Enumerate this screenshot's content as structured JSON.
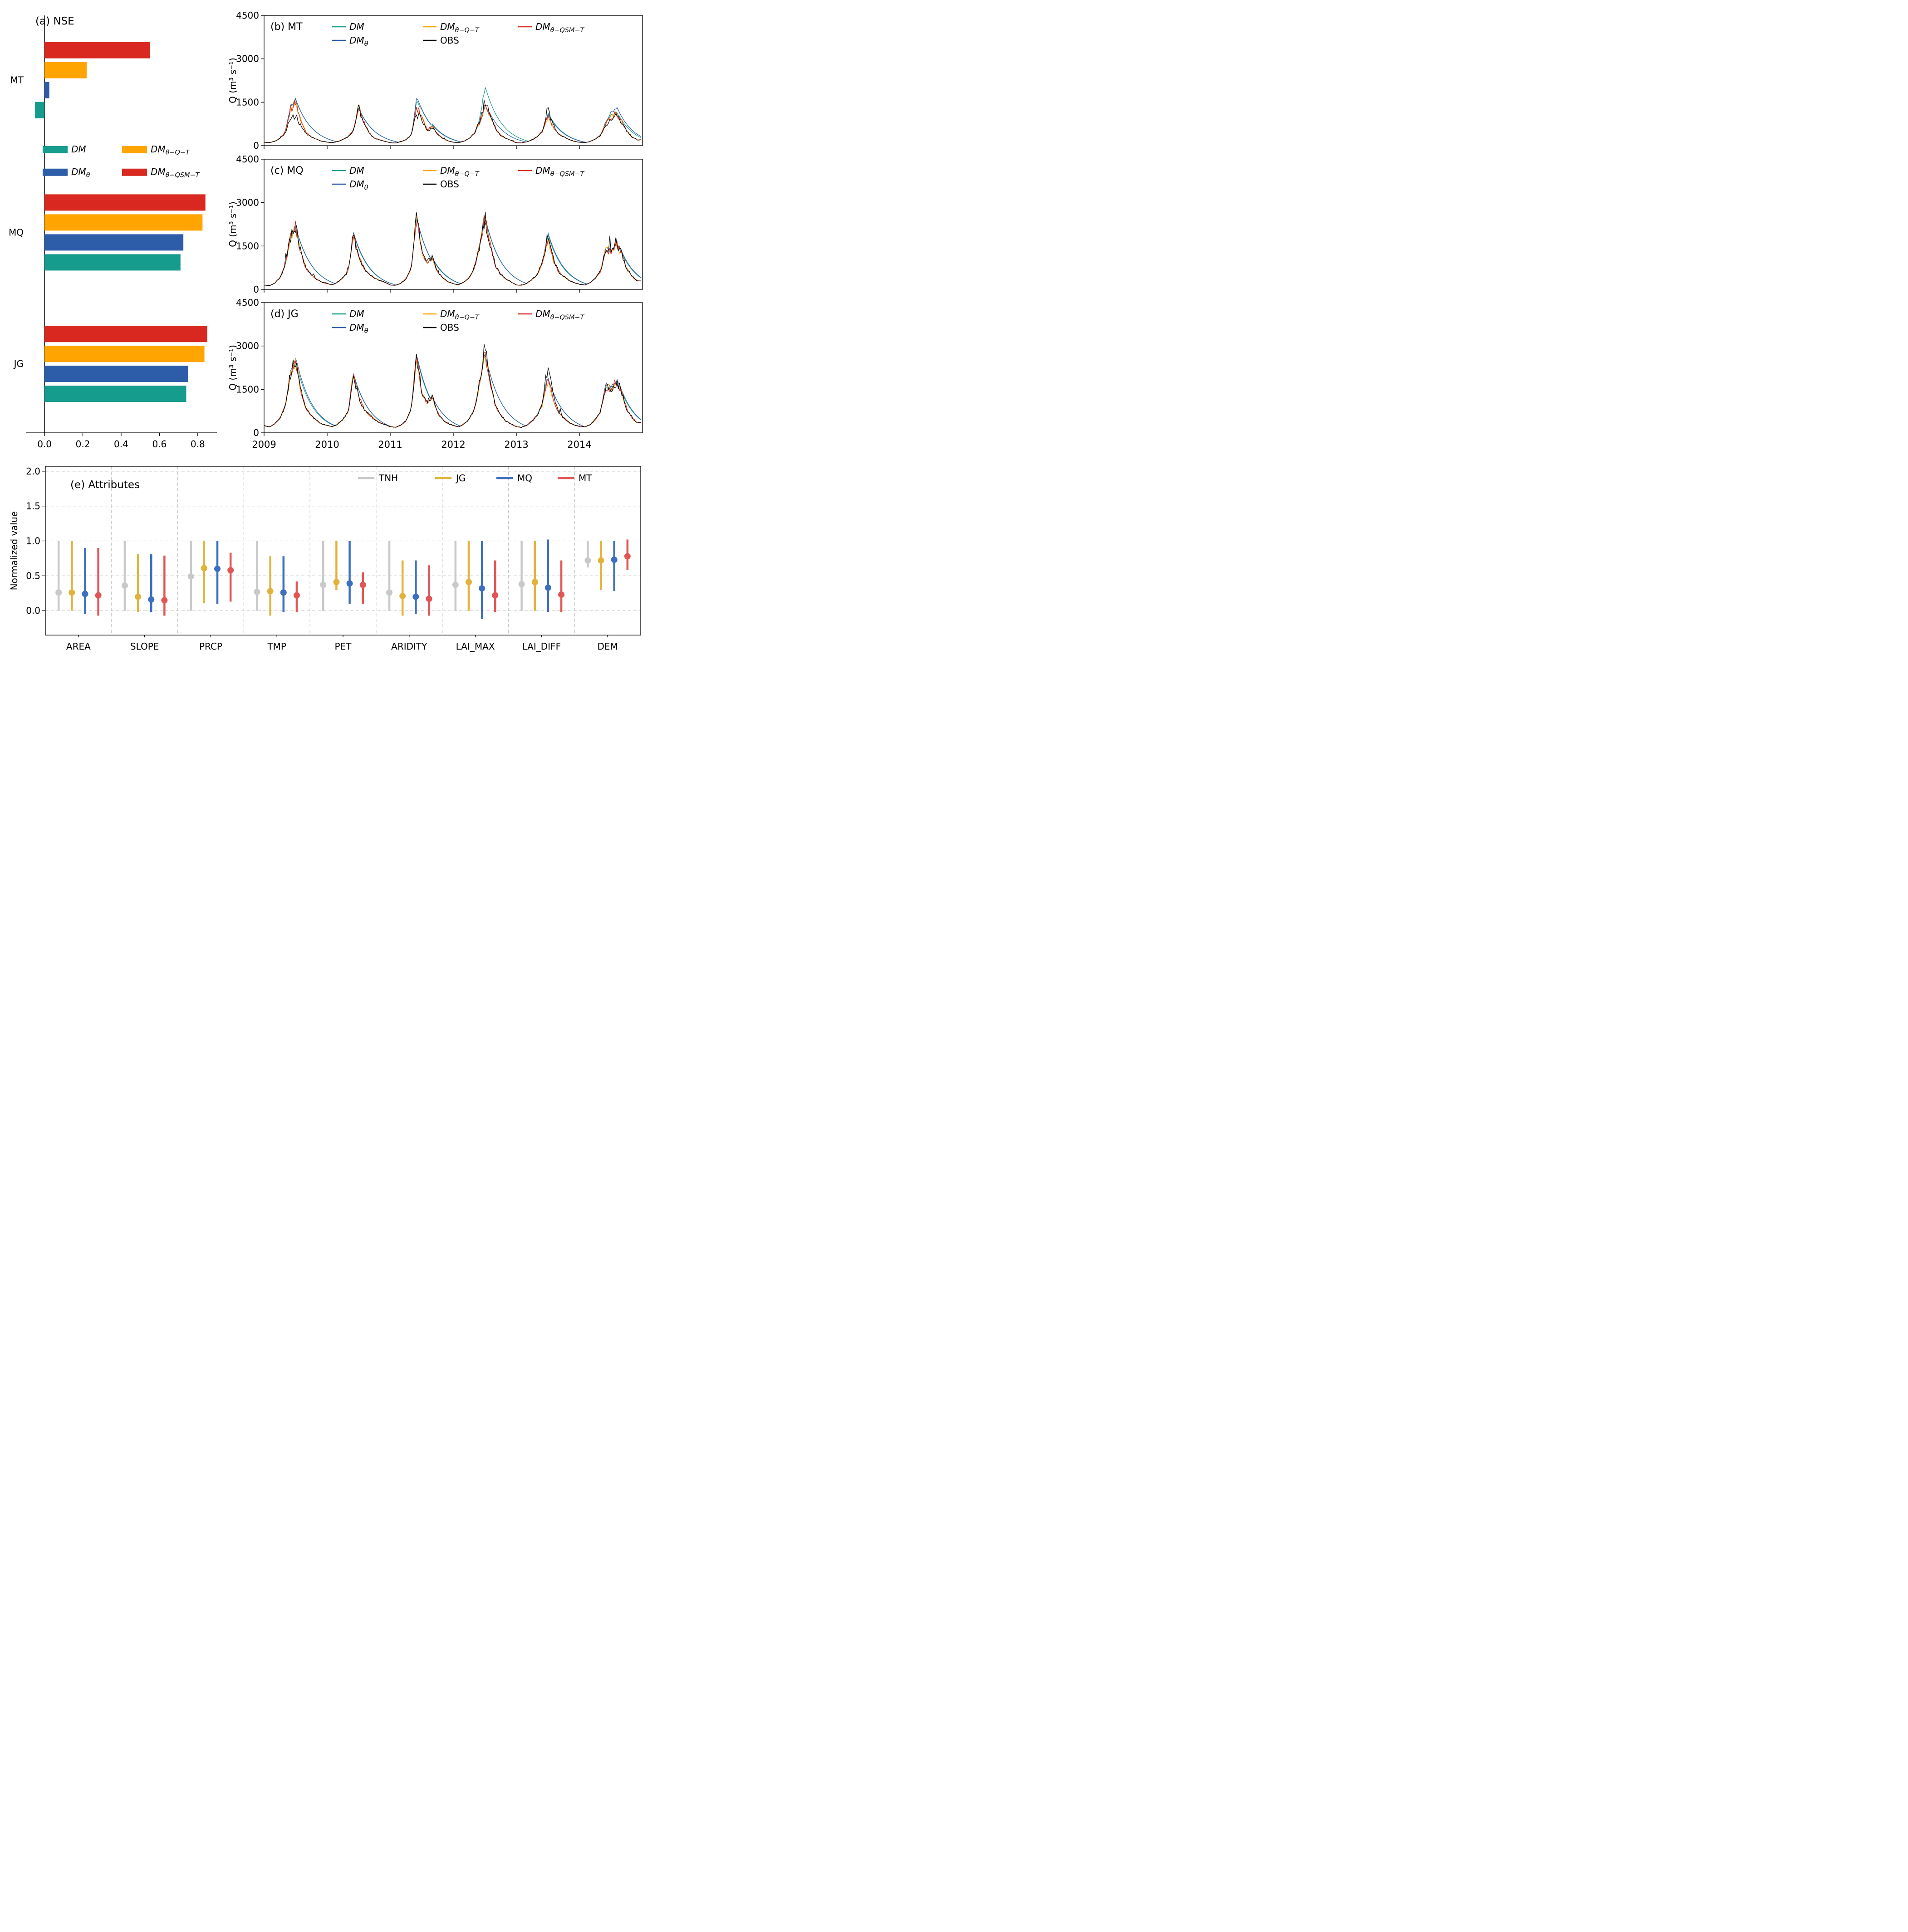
{
  "figure": {
    "background": "#ffffff"
  },
  "chart_data": [
    {
      "id": "a",
      "type": "bar",
      "title": "(a) NSE",
      "orientation": "horizontal",
      "groups": [
        "MT",
        "MQ",
        "JG"
      ],
      "xlim": [
        -0.095,
        0.9
      ],
      "xticks": [
        0,
        0.2,
        0.4,
        0.6,
        0.8
      ],
      "series": [
        {
          "base": "DM",
          "sub": "",
          "color": "#169c8d",
          "values": [
            -0.05,
            0.71,
            0.74
          ]
        },
        {
          "base": "DM",
          "sub": "θ",
          "color": "#2d5da9",
          "values": [
            0.025,
            0.725,
            0.75
          ]
        },
        {
          "base": "DM",
          "sub": "θ−Q−T",
          "color": "#ffa400",
          "values": [
            0.22,
            0.825,
            0.835
          ]
        },
        {
          "base": "DM",
          "sub": "θ−QSM−T",
          "color": "#d8281f",
          "values": [
            0.55,
            0.84,
            0.85
          ]
        }
      ]
    },
    {
      "id": "b",
      "type": "line",
      "title": "(b) MT",
      "ylabel": "Q (m³ s⁻¹)",
      "ylim": [
        0,
        4500
      ],
      "yticks": [
        0,
        1500,
        3000,
        4500
      ],
      "xlim": [
        2009,
        2015
      ],
      "xticks": [
        2009,
        2010,
        2011,
        2012,
        2013,
        2014
      ],
      "obs_monthly": [
        120,
        100,
        150,
        250,
        420,
        900,
        1000,
        700,
        420,
        300,
        210,
        150,
        120,
        100,
        140,
        210,
        310,
        520,
        1300,
        800,
        420,
        260,
        200,
        150,
        100,
        90,
        130,
        210,
        360,
        1100,
        900,
        520,
        620,
        400,
        250,
        160,
        120,
        100,
        150,
        250,
        420,
        820,
        1500,
        1150,
        600,
        350,
        250,
        180,
        100,
        95,
        130,
        200,
        310,
        520,
        1300,
        720,
        410,
        300,
        210,
        150,
        110,
        100,
        140,
        220,
        360,
        720,
        950,
        1050,
        820,
        500,
        300,
        200
      ],
      "models": [
        {
          "base": "DM",
          "sub": "",
          "color": "#169c8d",
          "peaks": [
            1.55,
            1,
            1.45,
            1.35,
            0.85,
            1.1
          ],
          "amp": 0.05,
          "smooth": 0.93,
          "seed": 11
        },
        {
          "base": "DM",
          "sub": "θ",
          "color": "#2d5da9",
          "peaks": [
            1.6,
            1.02,
            1.5,
            0.92,
            0.85,
            1.25
          ],
          "amp": 0.05,
          "smooth": 0.93,
          "seed": 22
        },
        {
          "base": "DM",
          "sub": "θ−Q−T",
          "color": "#ffa400",
          "peaks": [
            1.4,
            1.05,
            1.15,
            0.88,
            0.75,
            1.05
          ],
          "amp": 0.1,
          "seed": 33
        },
        {
          "base": "DM",
          "sub": "θ−QSM−T",
          "color": "#d8281f",
          "peaks": [
            1.45,
            1.05,
            1.2,
            0.9,
            0.75,
            1.05
          ],
          "amp": 0.1,
          "seed": 44
        }
      ],
      "obs": {
        "label": "OBS",
        "color": "#000000",
        "amp": 0.13,
        "seed": 55,
        "spiky": true
      }
    },
    {
      "id": "c",
      "type": "line",
      "title": "(c) MQ",
      "ylabel": "Q (m³ s⁻¹)",
      "ylim": [
        0,
        4500
      ],
      "yticks": [
        0,
        1500,
        3000,
        4500
      ],
      "xlim": [
        2009,
        2015
      ],
      "xticks": [
        2009,
        2010,
        2011,
        2012,
        2013,
        2014
      ],
      "obs_monthly": [
        150,
        130,
        210,
        400,
        820,
        1800,
        2200,
        1250,
        720,
        500,
        350,
        250,
        200,
        160,
        250,
        400,
        620,
        1900,
        1150,
        720,
        520,
        400,
        300,
        250,
        150,
        140,
        210,
        360,
        720,
        2600,
        1300,
        950,
        1100,
        600,
        400,
        260,
        200,
        160,
        250,
        400,
        720,
        1500,
        2500,
        1600,
        820,
        520,
        360,
        260,
        150,
        140,
        210,
        350,
        520,
        950,
        1900,
        1050,
        620,
        450,
        310,
        230,
        180,
        150,
        230,
        380,
        620,
        1400,
        1300,
        1550,
        1250,
        720,
        450,
        300
      ],
      "models": [
        {
          "base": "DM",
          "sub": "",
          "color": "#169c8d",
          "peaks": [
            1,
            1,
            0.95,
            1.05,
            1,
            1
          ],
          "amp": 0.05,
          "smooth": 0.93,
          "seed": 12
        },
        {
          "base": "DM",
          "sub": "θ",
          "color": "#2d5da9",
          "peaks": [
            1,
            1.02,
            0.98,
            1.02,
            1,
            1.05
          ],
          "amp": 0.05,
          "smooth": 0.93,
          "seed": 23
        },
        {
          "base": "DM",
          "sub": "θ−Q−T",
          "color": "#ffa400",
          "peaks": [
            1,
            1,
            0.93,
            1,
            0.95,
            1
          ],
          "amp": 0.1,
          "seed": 34
        },
        {
          "base": "DM",
          "sub": "θ−QSM−T",
          "color": "#d8281f",
          "peaks": [
            1,
            1,
            0.95,
            1,
            0.95,
            1
          ],
          "amp": 0.1,
          "seed": 45
        }
      ],
      "obs": {
        "label": "OBS",
        "color": "#000000",
        "amp": 0.13,
        "seed": 56,
        "spiky": true
      }
    },
    {
      "id": "d",
      "type": "line",
      "title": "(d) JG",
      "ylabel": "Q (m³ s⁻¹)",
      "ylim": [
        0,
        4500
      ],
      "yticks": [
        0,
        1500,
        3000,
        4500
      ],
      "xlim": [
        2009,
        2015
      ],
      "xticks": [
        2009,
        2010,
        2011,
        2012,
        2013,
        2014
      ],
      "obs_monthly": [
        250,
        200,
        300,
        500,
        920,
        2000,
        2600,
        1450,
        820,
        600,
        420,
        300,
        250,
        210,
        300,
        460,
        720,
        2050,
        1250,
        820,
        620,
        460,
        350,
        280,
        210,
        190,
        260,
        410,
        820,
        2750,
        1400,
        1050,
        1250,
        700,
        450,
        310,
        250,
        200,
        300,
        460,
        820,
        1700,
        2900,
        1850,
        920,
        620,
        410,
        300,
        210,
        190,
        260,
        400,
        620,
        1050,
        2300,
        1250,
        720,
        520,
        360,
        260,
        230,
        200,
        280,
        440,
        720,
        1600,
        1500,
        1750,
        1450,
        820,
        510,
        350
      ],
      "models": [
        {
          "base": "DM",
          "sub": "",
          "color": "#169c8d",
          "peaks": [
            1,
            1,
            1,
            0.95,
            0.85,
            1
          ],
          "amp": 0.05,
          "smooth": 0.93,
          "seed": 13
        },
        {
          "base": "DM",
          "sub": "θ",
          "color": "#2d5da9",
          "peaks": [
            1.02,
            1,
            1,
            0.95,
            0.85,
            1.05
          ],
          "amp": 0.05,
          "smooth": 0.93,
          "seed": 24
        },
        {
          "base": "DM",
          "sub": "θ−Q−T",
          "color": "#ffa400",
          "peaks": [
            0.95,
            1,
            0.9,
            0.95,
            0.8,
            1
          ],
          "amp": 0.1,
          "seed": 35
        },
        {
          "base": "DM",
          "sub": "θ−QSM−T",
          "color": "#d8281f",
          "peaks": [
            0.97,
            1,
            0.92,
            0.95,
            0.8,
            1
          ],
          "amp": 0.1,
          "seed": 46
        }
      ],
      "obs": {
        "label": "OBS",
        "color": "#000000",
        "amp": 0.13,
        "seed": 57,
        "spiky": true
      }
    },
    {
      "id": "e",
      "type": "errorbar",
      "title": "(e) Attributes",
      "ylabel": "Normalized value",
      "ylim": [
        -0.35,
        2.07
      ],
      "yticks": [
        0,
        0.5,
        1,
        1.5,
        2
      ],
      "categories": [
        "AREA",
        "SLOPE",
        "PRCP",
        "TMP",
        "PET",
        "ARIDITY",
        "LAI_MAX",
        "LAI_DIFF",
        "DEM"
      ],
      "series": [
        {
          "name": "TNH",
          "color": "#c9c9c9",
          "points": [
            [
              0.26,
              0,
              1
            ],
            [
              0.36,
              0,
              1
            ],
            [
              0.49,
              0,
              1
            ],
            [
              0.27,
              0,
              1
            ],
            [
              0.37,
              0,
              1
            ],
            [
              0.26,
              0,
              1
            ],
            [
              0.37,
              0,
              1
            ],
            [
              0.38,
              0,
              1
            ],
            [
              0.72,
              0.62,
              1
            ]
          ]
        },
        {
          "name": "JG",
          "color": "#e2b33c",
          "points": [
            [
              0.26,
              0,
              1
            ],
            [
              0.2,
              -0.02,
              0.81
            ],
            [
              0.61,
              0.11,
              1
            ],
            [
              0.28,
              -0.07,
              0.78
            ],
            [
              0.41,
              0.3,
              1
            ],
            [
              0.21,
              -0.07,
              0.72
            ],
            [
              0.41,
              0,
              1
            ],
            [
              0.41,
              0,
              1
            ],
            [
              0.72,
              0.3,
              1
            ]
          ]
        },
        {
          "name": "MQ",
          "color": "#3d6fc0",
          "points": [
            [
              0.24,
              -0.05,
              0.9
            ],
            [
              0.16,
              -0.02,
              0.81
            ],
            [
              0.6,
              0.1,
              1
            ],
            [
              0.26,
              -0.02,
              0.78
            ],
            [
              0.39,
              0.1,
              1
            ],
            [
              0.2,
              -0.05,
              0.72
            ],
            [
              0.32,
              -0.12,
              1
            ],
            [
              0.33,
              -0.02,
              1.02
            ],
            [
              0.73,
              0.28,
              1
            ]
          ]
        },
        {
          "name": "MT",
          "color": "#e15655",
          "points": [
            [
              0.22,
              -0.07,
              0.9
            ],
            [
              0.15,
              -0.07,
              0.79
            ],
            [
              0.58,
              0.13,
              0.83
            ],
            [
              0.22,
              -0.02,
              0.42
            ],
            [
              0.37,
              0.1,
              0.55
            ],
            [
              0.17,
              -0.07,
              0.65
            ],
            [
              0.22,
              -0.02,
              0.72
            ],
            [
              0.23,
              -0.02,
              0.72
            ],
            [
              0.78,
              0.58,
              1.02
            ]
          ]
        }
      ]
    }
  ]
}
